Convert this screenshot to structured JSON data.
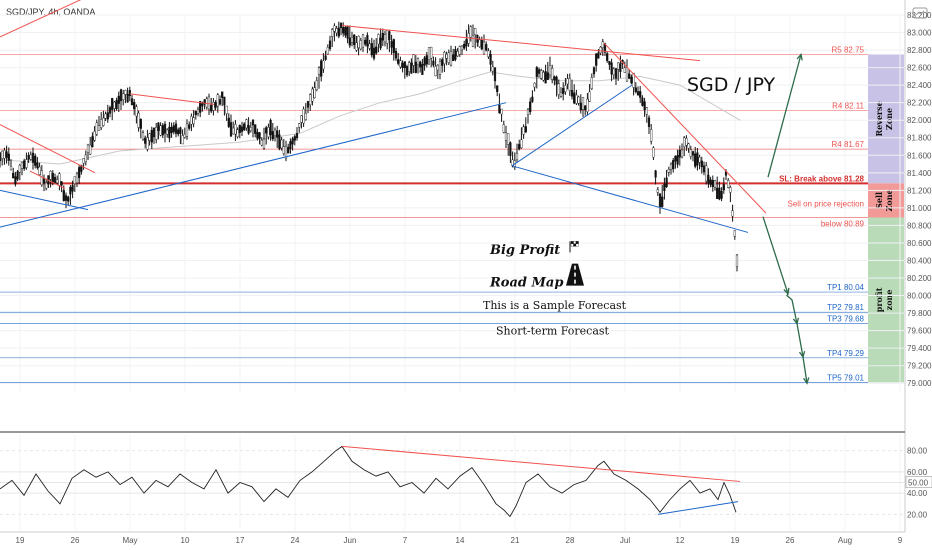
{
  "header": {
    "symbol_title": "SGD/JPY, 4h, OANDA"
  },
  "chart_data": [
    {
      "type": "candlestick",
      "title": "SGD/JPY, 4h, OANDA",
      "pair_label": "SGD / JPY",
      "ylim": [
        78.9,
        83.2
      ],
      "y_ticks": [
        "83.200",
        "83.000",
        "82.800",
        "82.600",
        "82.400",
        "82.200",
        "82.000",
        "81.800",
        "81.600",
        "81.400",
        "81.200",
        "81.000",
        "80.800",
        "80.600",
        "80.400",
        "80.200",
        "80.000",
        "79.800",
        "79.600",
        "79.400",
        "79.200",
        "79.000"
      ],
      "x_ticks": [
        "19",
        "26",
        "May",
        "10",
        "17",
        "24",
        "Jun",
        "7",
        "14",
        "21",
        "28",
        "Jul",
        "12",
        "19",
        "26",
        "Aug",
        "9"
      ],
      "price_path": [
        [
          0,
          81.55
        ],
        [
          8,
          81.62
        ],
        [
          15,
          81.32
        ],
        [
          22,
          81.45
        ],
        [
          30,
          81.6
        ],
        [
          38,
          81.5
        ],
        [
          45,
          81.25
        ],
        [
          52,
          81.35
        ],
        [
          60,
          81.3
        ],
        [
          67,
          81.05
        ],
        [
          74,
          81.25
        ],
        [
          82,
          81.45
        ],
        [
          90,
          81.7
        ],
        [
          98,
          81.95
        ],
        [
          106,
          82.05
        ],
        [
          114,
          82.15
        ],
        [
          122,
          82.25
        ],
        [
          130,
          82.3
        ],
        [
          137,
          82.05
        ],
        [
          145,
          81.75
        ],
        [
          152,
          81.8
        ],
        [
          160,
          81.9
        ],
        [
          168,
          81.85
        ],
        [
          175,
          81.92
        ],
        [
          182,
          81.8
        ],
        [
          190,
          81.95
        ],
        [
          198,
          82.1
        ],
        [
          206,
          82.2
        ],
        [
          214,
          82.15
        ],
        [
          222,
          82.25
        ],
        [
          230,
          81.95
        ],
        [
          238,
          81.85
        ],
        [
          246,
          81.95
        ],
        [
          254,
          81.9
        ],
        [
          262,
          81.75
        ],
        [
          270,
          81.9
        ],
        [
          278,
          81.8
        ],
        [
          286,
          81.65
        ],
        [
          294,
          81.75
        ],
        [
          302,
          82.0
        ],
        [
          310,
          82.2
        ],
        [
          318,
          82.45
        ],
        [
          326,
          82.75
        ],
        [
          334,
          83.0
        ],
        [
          342,
          83.05
        ],
        [
          350,
          82.95
        ],
        [
          358,
          82.85
        ],
        [
          366,
          82.9
        ],
        [
          374,
          82.8
        ],
        [
          382,
          82.95
        ],
        [
          390,
          82.9
        ],
        [
          398,
          82.7
        ],
        [
          406,
          82.55
        ],
        [
          414,
          82.65
        ],
        [
          422,
          82.6
        ],
        [
          430,
          82.75
        ],
        [
          438,
          82.55
        ],
        [
          446,
          82.7
        ],
        [
          454,
          82.75
        ],
        [
          462,
          82.8
        ],
        [
          470,
          83.0
        ],
        [
          478,
          82.9
        ],
        [
          486,
          82.85
        ],
        [
          494,
          82.55
        ],
        [
          500,
          82.15
        ],
        [
          505,
          81.85
        ],
        [
          510,
          81.65
        ],
        [
          514,
          81.5
        ],
        [
          520,
          81.75
        ],
        [
          526,
          81.95
        ],
        [
          532,
          82.25
        ],
        [
          538,
          82.55
        ],
        [
          544,
          82.5
        ],
        [
          550,
          82.6
        ],
        [
          556,
          82.4
        ],
        [
          562,
          82.3
        ],
        [
          568,
          82.45
        ],
        [
          574,
          82.3
        ],
        [
          580,
          82.2
        ],
        [
          586,
          82.1
        ],
        [
          592,
          82.45
        ],
        [
          598,
          82.75
        ],
        [
          604,
          82.85
        ],
        [
          610,
          82.6
        ],
        [
          616,
          82.5
        ],
        [
          622,
          82.65
        ],
        [
          628,
          82.55
        ],
        [
          634,
          82.4
        ],
        [
          640,
          82.3
        ],
        [
          646,
          82.1
        ],
        [
          652,
          81.8
        ],
        [
          656,
          81.3
        ],
        [
          660,
          81.05
        ],
        [
          664,
          81.2
        ],
        [
          668,
          81.4
        ],
        [
          674,
          81.5
        ],
        [
          680,
          81.6
        ],
        [
          686,
          81.75
        ],
        [
          692,
          81.6
        ],
        [
          698,
          81.55
        ],
        [
          704,
          81.45
        ],
        [
          710,
          81.3
        ],
        [
          716,
          81.25
        ],
        [
          722,
          81.15
        ],
        [
          726,
          81.38
        ],
        [
          730,
          81.2
        ],
        [
          733,
          80.9
        ],
        [
          736,
          80.55
        ],
        [
          738,
          80.2
        ]
      ],
      "ma_path": [
        [
          0,
          81.55
        ],
        [
          60,
          81.5
        ],
        [
          120,
          81.65
        ],
        [
          180,
          81.7
        ],
        [
          240,
          81.75
        ],
        [
          300,
          81.85
        ],
        [
          340,
          82.05
        ],
        [
          380,
          82.2
        ],
        [
          420,
          82.3
        ],
        [
          460,
          82.45
        ],
        [
          490,
          82.55
        ],
        [
          520,
          82.5
        ],
        [
          560,
          82.45
        ],
        [
          600,
          82.45
        ],
        [
          640,
          82.5
        ],
        [
          680,
          82.4
        ],
        [
          710,
          82.2
        ],
        [
          740,
          82.0
        ]
      ],
      "levels": [
        {
          "label": "R5 82.75",
          "value": 82.75,
          "color": "#ef5350"
        },
        {
          "label": "R4 82.11",
          "value": 82.11,
          "color": "#ef5350"
        },
        {
          "label": "R4 81.67",
          "value": 81.67,
          "color": "#ef5350"
        },
        {
          "label": "SL: Break above 81.28",
          "value": 81.28,
          "color": "#d32f2f",
          "bold": true
        },
        {
          "label": "Sell on price rejection",
          "value": 80.95,
          "color": "#ef5350"
        },
        {
          "label": "below 80.89",
          "value": 80.89,
          "color": "#ef5350"
        },
        {
          "label": "TP1 80.04",
          "value": 80.04,
          "color": "#1e66c8"
        },
        {
          "label": "TP2 79.81",
          "value": 79.81,
          "color": "#1e66c8"
        },
        {
          "label": "TP3 79.68",
          "value": 79.68,
          "color": "#1e66c8"
        },
        {
          "label": "TP4 79.29",
          "value": 79.29,
          "color": "#1e66c8"
        },
        {
          "label": "TP5 79.01",
          "value": 79.01,
          "color": "#1e66c8"
        }
      ],
      "zones": [
        {
          "label": "Reverse Zone",
          "from": 81.28,
          "to": 82.75,
          "color": "#c8c3e6"
        },
        {
          "label": "Sell Zone",
          "from": 80.89,
          "to": 81.28,
          "color": "#f29a98"
        },
        {
          "label": "profit zone",
          "from": 79.01,
          "to": 80.89,
          "color": "#b9dbb7"
        }
      ],
      "annotations": [
        "Big Profit",
        "Road Map",
        "This is a Sample Forecast",
        "Short-term Forecast"
      ]
    },
    {
      "type": "line",
      "title": "",
      "ylim": [
        10,
        90
      ],
      "y_ticks": [
        "80.00",
        "60.00",
        "50.00",
        "40.00",
        "20.00"
      ],
      "marker": "50.00",
      "path": [
        [
          0,
          44
        ],
        [
          12,
          52
        ],
        [
          24,
          38
        ],
        [
          36,
          58
        ],
        [
          48,
          42
        ],
        [
          60,
          30
        ],
        [
          72,
          54
        ],
        [
          84,
          62
        ],
        [
          96,
          55
        ],
        [
          108,
          60
        ],
        [
          120,
          48
        ],
        [
          132,
          55
        ],
        [
          144,
          40
        ],
        [
          156,
          52
        ],
        [
          168,
          46
        ],
        [
          180,
          58
        ],
        [
          192,
          50
        ],
        [
          204,
          44
        ],
        [
          216,
          62
        ],
        [
          228,
          40
        ],
        [
          240,
          50
        ],
        [
          252,
          46
        ],
        [
          264,
          32
        ],
        [
          276,
          44
        ],
        [
          288,
          36
        ],
        [
          300,
          52
        ],
        [
          312,
          60
        ],
        [
          324,
          70
        ],
        [
          336,
          80
        ],
        [
          342,
          84
        ],
        [
          352,
          70
        ],
        [
          364,
          62
        ],
        [
          376,
          56
        ],
        [
          388,
          60
        ],
        [
          400,
          46
        ],
        [
          412,
          50
        ],
        [
          424,
          40
        ],
        [
          436,
          54
        ],
        [
          448,
          44
        ],
        [
          460,
          56
        ],
        [
          472,
          64
        ],
        [
          484,
          48
        ],
        [
          496,
          30
        ],
        [
          504,
          24
        ],
        [
          510,
          18
        ],
        [
          516,
          28
        ],
        [
          526,
          50
        ],
        [
          538,
          58
        ],
        [
          550,
          46
        ],
        [
          562,
          40
        ],
        [
          574,
          48
        ],
        [
          586,
          52
        ],
        [
          598,
          66
        ],
        [
          604,
          70
        ],
        [
          614,
          58
        ],
        [
          626,
          52
        ],
        [
          638,
          44
        ],
        [
          650,
          34
        ],
        [
          660,
          22
        ],
        [
          670,
          34
        ],
        [
          680,
          44
        ],
        [
          690,
          52
        ],
        [
          700,
          40
        ],
        [
          710,
          44
        ],
        [
          718,
          34
        ],
        [
          724,
          50
        ],
        [
          730,
          38
        ],
        [
          736,
          22
        ]
      ]
    }
  ]
}
